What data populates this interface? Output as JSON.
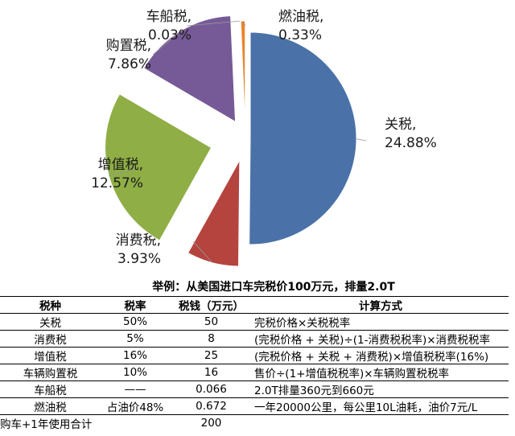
{
  "chart_data": {
    "type": "pie",
    "slices": [
      {
        "name": "关税",
        "value": 24.88,
        "percent_label": "24.88%",
        "color": "#4a72a8"
      },
      {
        "name": "消费税",
        "value": 3.93,
        "percent_label": "3.93%",
        "color": "#b5443f"
      },
      {
        "name": "增值税",
        "value": 12.57,
        "percent_label": "12.57%",
        "color": "#8fae46"
      },
      {
        "name": "购置税",
        "value": 7.86,
        "percent_label": "7.86%",
        "color": "#765a97"
      },
      {
        "name": "车船税",
        "value": 0.03,
        "percent_label": "0.03%",
        "color": "#3f9bb0"
      },
      {
        "name": "燃油税",
        "value": 0.33,
        "percent_label": "0.33%",
        "color": "#e8862d"
      }
    ],
    "label_suffix": ","
  },
  "table": {
    "title": "举例：从美国进口车完税价100万元，排量2.0T",
    "headers": [
      "税种",
      "税率",
      "税钱（万元）",
      "计算方式"
    ],
    "rows": [
      [
        "关税",
        "50%",
        "50",
        "完税价格×关税税率"
      ],
      [
        "消费税",
        "5%",
        "8",
        "(完税价格 + 关税)÷(1-消费税税率)×消费税税率"
      ],
      [
        "增值税",
        "16%",
        "25",
        "(完税价格 + 关税 + 消费税)×增值税税率(16%)"
      ],
      [
        "车辆购置税",
        "10%",
        "16",
        "售价÷(1+增值税税率)×车辆购置税税率"
      ],
      [
        "车船税",
        "——",
        "0.066",
        "2.0T排量360元到660元"
      ],
      [
        "燃油税",
        "占油价48%",
        "0.672",
        "一年20000公里，每公里10L油耗，油价7元/L"
      ]
    ],
    "total": {
      "label": "购车+1年使用合计",
      "value": "200"
    }
  }
}
